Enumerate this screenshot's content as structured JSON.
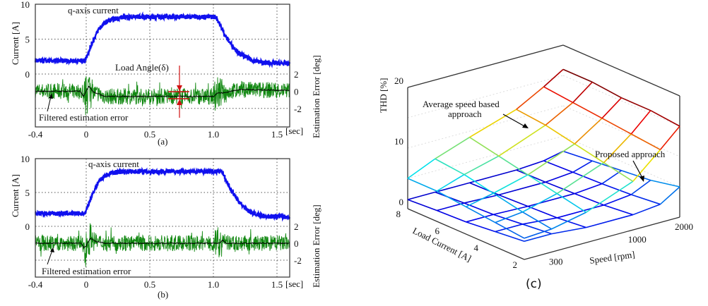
{
  "chart_data": [
    {
      "type": "line",
      "panel_label": "(a)",
      "xlabel": "[sec]",
      "ylabel": "Current [A]",
      "y2label": "Estimation Error [deg]",
      "xlim": [
        -0.4,
        1.6
      ],
      "ylim": [
        -7.6,
        10
      ],
      "y2lim": [
        -4.1,
        10
      ],
      "xticks": [
        "-0.4",
        "0",
        "0.5",
        "1.0",
        "1.5"
      ],
      "xtick_values": [
        -0.4,
        0,
        0.5,
        1.0,
        1.5
      ],
      "yticks": [
        "0",
        "5",
        "10"
      ],
      "ytick_values": [
        0,
        5,
        10
      ],
      "y2ticks": [
        "-2",
        "0",
        "2"
      ],
      "y2tick_values": [
        -2,
        0,
        2
      ],
      "grid": true,
      "annotations": {
        "current": "q-axis current",
        "load_angle": "Load Angle(δ)",
        "filtered": "Filtered estimation error"
      },
      "series": [
        {
          "key": "q_current",
          "color": "#1010ee",
          "axis": "left",
          "x": [
            -0.4,
            -0.01,
            0.05,
            0.1,
            0.15,
            0.2,
            0.3,
            0.5,
            1.02,
            1.06,
            1.1,
            1.15,
            1.2,
            1.3,
            1.4,
            1.6
          ],
          "y": [
            1.9,
            1.9,
            4.6,
            6.5,
            7.4,
            7.8,
            8.2,
            8.2,
            8.2,
            6.8,
            5.3,
            4.0,
            3.0,
            2.0,
            1.6,
            1.5
          ]
        },
        {
          "key": "estimation_error",
          "color": "#118811",
          "axis": "right"
        },
        {
          "key": "filtered_error",
          "color": "#000000",
          "axis": "right",
          "x": [
            -0.4,
            -0.05,
            -0.02,
            0.02,
            0.06,
            0.15,
            0.5,
            1.0,
            1.03,
            1.08,
            1.2,
            1.6
          ],
          "y": [
            0,
            0,
            -0.6,
            0.6,
            -0.1,
            -0.6,
            -0.6,
            -0.6,
            -0.2,
            -0.2,
            0.2,
            0.1
          ]
        }
      ]
    },
    {
      "type": "line",
      "panel_label": "(b)",
      "xlabel": "[sec]",
      "ylabel": "Current [A]",
      "y2label": "Estimation Error [deg]",
      "xlim": [
        -0.4,
        1.6
      ],
      "ylim": [
        -7.6,
        10
      ],
      "y2lim": [
        -4.1,
        10
      ],
      "xticks": [
        "-0.4",
        "0",
        "0.5",
        "1.0",
        "1.5"
      ],
      "xtick_values": [
        -0.4,
        0,
        0.5,
        1.0,
        1.5
      ],
      "yticks": [
        "0",
        "5",
        "10"
      ],
      "ytick_values": [
        0,
        5,
        10
      ],
      "y2ticks": [
        "-2",
        "0",
        "2"
      ],
      "y2tick_values": [
        -2,
        0,
        2
      ],
      "grid": true,
      "annotations": {
        "current": "q-axis current",
        "filtered": "Filtered estimation error"
      },
      "series": [
        {
          "key": "q_current",
          "color": "#1010ee",
          "axis": "left",
          "x": [
            -0.4,
            -0.01,
            0.05,
            0.1,
            0.15,
            0.2,
            0.3,
            0.5,
            1.07,
            1.1,
            1.15,
            1.2,
            1.25,
            1.3,
            1.4,
            1.6
          ],
          "y": [
            1.9,
            1.9,
            4.8,
            6.7,
            7.5,
            7.9,
            8.1,
            8.1,
            8.1,
            6.8,
            5.0,
            3.7,
            2.7,
            2.0,
            1.5,
            1.4
          ]
        },
        {
          "key": "estimation_error",
          "color": "#118811",
          "axis": "right"
        },
        {
          "key": "filtered_error",
          "color": "#000000",
          "axis": "right",
          "x": [
            -0.4,
            -0.04,
            -0.02,
            0.0,
            0.03,
            0.08,
            0.15,
            1.05,
            1.07,
            1.1,
            1.6
          ],
          "y": [
            0,
            0,
            -0.5,
            -0.3,
            0.6,
            0.2,
            0,
            0,
            0.4,
            0,
            0
          ]
        }
      ]
    },
    {
      "type": "surface3d",
      "panel_label": "(c)",
      "zlabel": "THD [%]",
      "xlabel": "Speed [rpm]",
      "ylabel": "Load Current [A]",
      "zlim": [
        0,
        20
      ],
      "zticks": [
        "0",
        "10",
        "20"
      ],
      "ztick_values": [
        0,
        10,
        20
      ],
      "xticks": [
        "300",
        "1000",
        "2000"
      ],
      "xtick_values": [
        300,
        1000,
        2000
      ],
      "yticks": [
        "2",
        "4",
        "6",
        "8"
      ],
      "ytick_values": [
        2,
        4,
        6,
        8
      ],
      "speed_rpm": [
        200,
        300,
        500,
        1000,
        1500,
        2000
      ],
      "load_current_a": [
        2,
        3.5,
        5,
        6.5,
        8
      ],
      "colormap": "jet",
      "series": [
        {
          "name": "Average speed based approach",
          "z": [
            [
              3.5,
              3.8,
              5.0,
              8.0,
              12.0,
              15.0
            ],
            [
              4.0,
              4.5,
              6.0,
              9.0,
              12.5,
              15.5
            ],
            [
              4.5,
              5.5,
              7.0,
              10.0,
              13.0,
              15.5
            ],
            [
              5.0,
              6.5,
              8.0,
              11.0,
              13.5,
              16.0
            ],
            [
              5.0,
              7.0,
              9.0,
              11.5,
              14.0,
              16.0
            ]
          ]
        },
        {
          "name": "Proposed approach",
          "z": [
            [
              3.0,
              3.0,
              2.5,
              2.5,
              3.0,
              5.0
            ],
            [
              2.5,
              2.5,
              2.0,
              2.0,
              2.5,
              4.0
            ],
            [
              2.0,
              2.0,
              1.8,
              1.8,
              2.2,
              3.5
            ],
            [
              1.8,
              1.8,
              1.6,
              1.6,
              2.0,
              3.0
            ],
            [
              1.5,
              1.5,
              1.5,
              1.5,
              1.8,
              2.5
            ]
          ]
        }
      ],
      "annotations": {
        "avg_line1": "Average speed based",
        "avg_line2": "approach",
        "proposed": "Proposed approach"
      }
    }
  ]
}
